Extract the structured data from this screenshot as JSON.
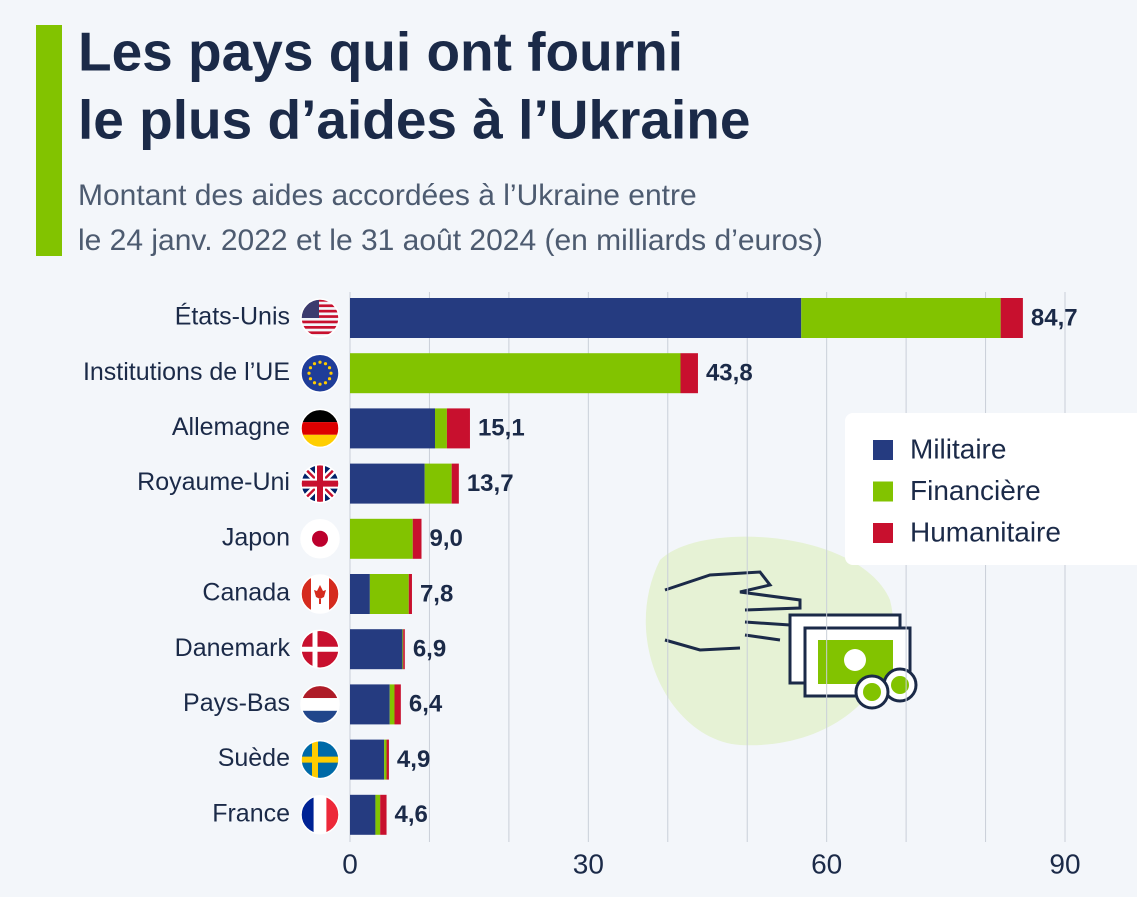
{
  "chart_data": {
    "type": "stacked-bar-horizontal",
    "title": [
      "Les pays qui ont fourni",
      "le plus d’aides à l’Ukraine"
    ],
    "subtitle": [
      "Montant des aides accordées à l’Ukraine entre",
      "le 24 janv. 2022 et le 31 août 2024 (en milliards d’euros)"
    ],
    "categories": [
      "États-Unis",
      "Institutions de l’UE",
      "Allemagne",
      "Royaume-Uni",
      "Japon",
      "Canada",
      "Danemark",
      "Pays-Bas",
      "Suède",
      "France"
    ],
    "series": [
      {
        "name": "Militaire",
        "color": "#253b80",
        "values": [
          56.8,
          0,
          10.7,
          9.4,
          0,
          2.5,
          6.6,
          5.0,
          4.3,
          3.2
        ]
      },
      {
        "name": "Financière",
        "color": "#82c300",
        "values": [
          25.1,
          41.6,
          1.5,
          3.4,
          7.9,
          4.9,
          0.1,
          0.6,
          0.3,
          0.6
        ]
      },
      {
        "name": "Humanitaire",
        "color": "#c8102e",
        "values": [
          2.8,
          2.2,
          2.9,
          0.9,
          1.1,
          0.4,
          0.2,
          0.8,
          0.3,
          0.8
        ]
      }
    ],
    "totals": [
      84.7,
      43.8,
      15.1,
      13.7,
      9.0,
      7.8,
      6.9,
      6.4,
      4.9,
      4.6
    ],
    "total_labels": [
      "84,7",
      "43,8",
      "15,1",
      "13,7",
      "9,0",
      "7,8",
      "6,9",
      "6,4",
      "4,9",
      "4,6"
    ],
    "xlim": [
      0,
      90
    ],
    "xticks": [
      0,
      30,
      60,
      90
    ],
    "minor_xticks": [
      10,
      20,
      40,
      50,
      70,
      80
    ],
    "grid": true,
    "legend": "right"
  }
}
